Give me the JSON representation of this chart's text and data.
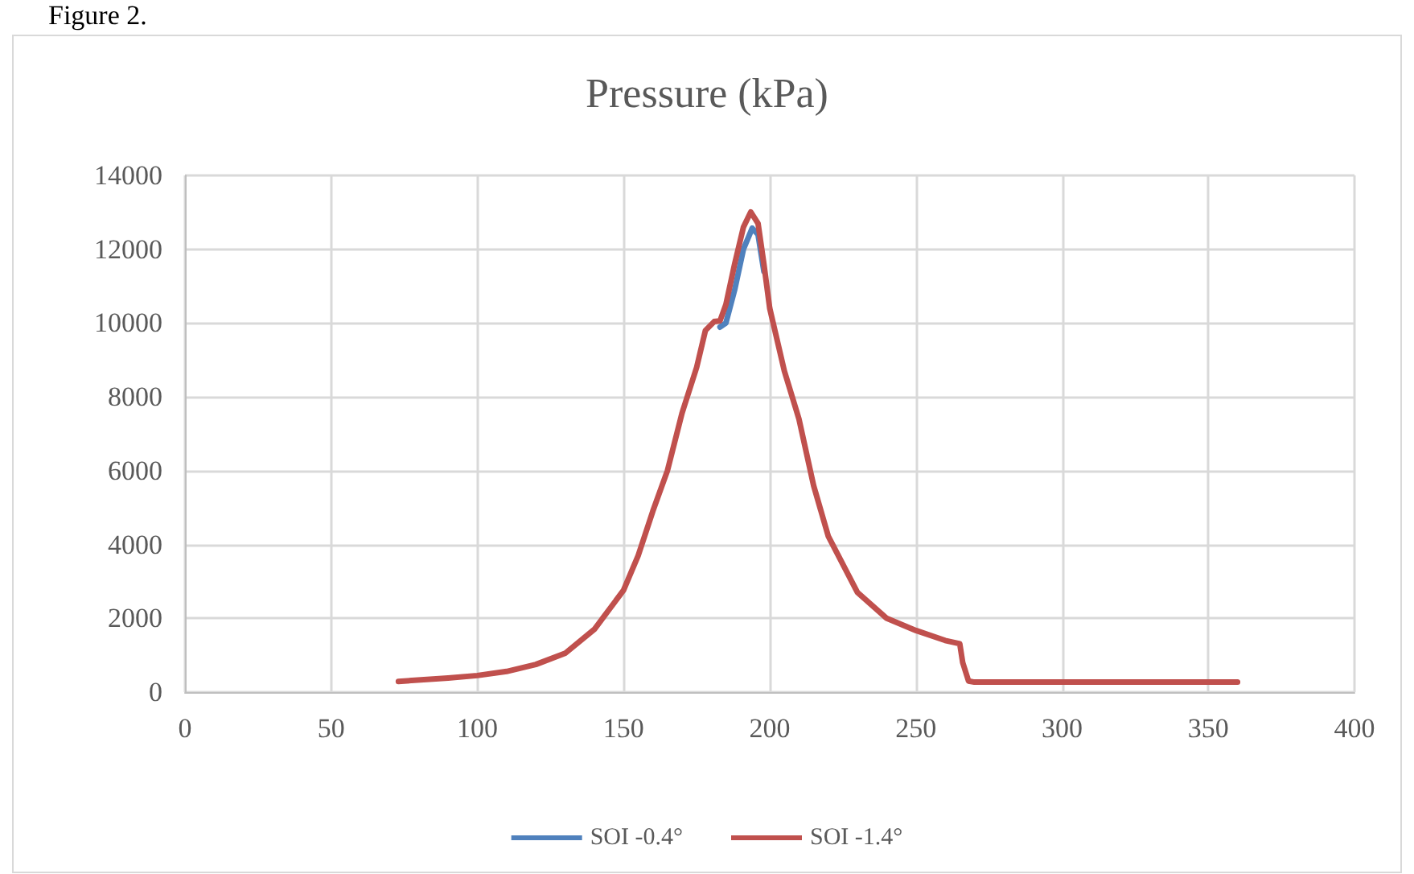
{
  "chart_data": {
    "type": "line",
    "title": "Pressure (kPa)",
    "annotations": [
      "Figure 2."
    ],
    "xlim": [
      0,
      400
    ],
    "xticks": [
      0,
      50,
      100,
      150,
      200,
      250,
      300,
      350,
      400
    ],
    "ylim": [
      0,
      14000
    ],
    "yticks": [
      0,
      2000,
      4000,
      6000,
      8000,
      10000,
      12000,
      14000
    ],
    "grid": true,
    "legend": "bottom",
    "marker": "none",
    "line_style": "solid",
    "series": [
      {
        "name": "SOI -0.4°",
        "color": "#4f81bd",
        "x": [
          183,
          185,
          188,
          191,
          194,
          196,
          198
        ],
        "values": [
          9890,
          10000,
          10900,
          12000,
          12570,
          12400,
          11400
        ]
      },
      {
        "name": "SOI -1.4°",
        "color": "#c0504d",
        "x": [
          73,
          90,
          100,
          110,
          120,
          130,
          140,
          150,
          155,
          160,
          165,
          170,
          175,
          178,
          181,
          183,
          185,
          188,
          191,
          193.5,
          196,
          198,
          200,
          205,
          210,
          215,
          220,
          230,
          240,
          250,
          260,
          265,
          266,
          268,
          270,
          300,
          330,
          360
        ],
        "values": [
          290,
          380,
          450,
          560,
          750,
          1050,
          1700,
          2760,
          3700,
          4900,
          6000,
          7560,
          8800,
          9800,
          10040,
          10060,
          10500,
          11600,
          12600,
          13010,
          12700,
          11600,
          10400,
          8700,
          7400,
          5600,
          4230,
          2700,
          2000,
          1670,
          1400,
          1310,
          800,
          300,
          270,
          270,
          270,
          270
        ]
      }
    ]
  }
}
